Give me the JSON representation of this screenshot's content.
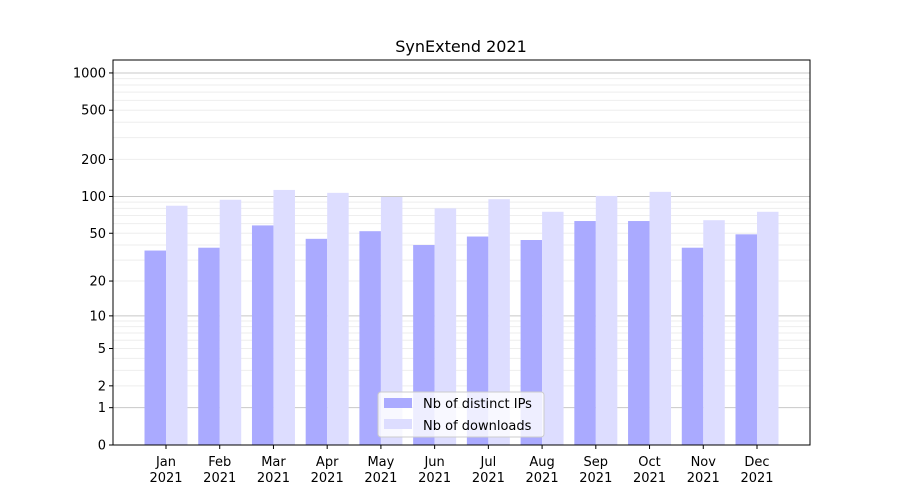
{
  "chart_data": {
    "type": "bar",
    "title": "SynExtend 2021",
    "xlabel": "",
    "ylabel": "",
    "yscale": "log10(1+y)",
    "ylim": [
      0,
      1270
    ],
    "yticks": [
      0,
      1,
      2,
      5,
      10,
      20,
      50,
      100,
      200,
      500,
      1000
    ],
    "ytick_labels": [
      "0",
      "1",
      "2",
      "5",
      "10",
      "20",
      "50",
      "100",
      "200",
      "500",
      "1000"
    ],
    "categories": [
      "Jan",
      "Feb",
      "Mar",
      "Apr",
      "May",
      "Jun",
      "Jul",
      "Aug",
      "Sep",
      "Oct",
      "Nov",
      "Dec"
    ],
    "year_label": "2021",
    "grid": true,
    "legend_position": "lower-center",
    "series": [
      {
        "name": "Nb of distinct IPs",
        "color": "#aaaaff",
        "values": [
          36,
          38,
          58,
          45,
          52,
          40,
          47,
          44,
          63,
          63,
          38,
          49
        ]
      },
      {
        "name": "Nb of downloads",
        "color": "#ddddff",
        "values": [
          84,
          94,
          113,
          107,
          99,
          80,
          95,
          75,
          101,
          109,
          64,
          75
        ]
      }
    ]
  }
}
